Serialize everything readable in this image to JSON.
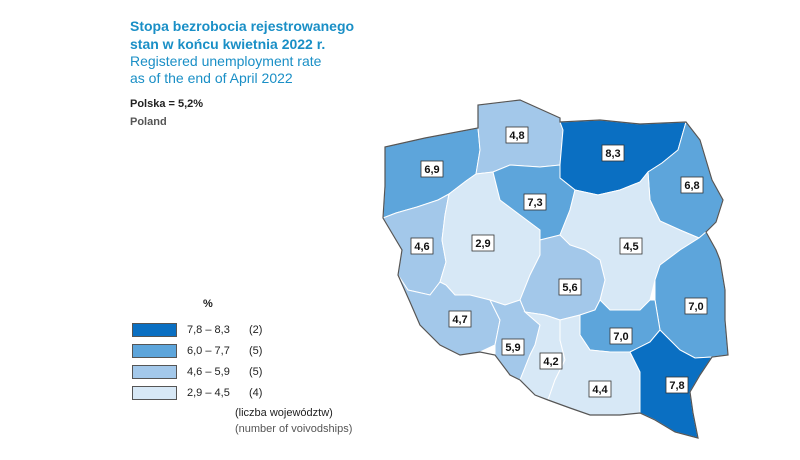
{
  "title": {
    "pl_line1": "Stopa bezrobocia rejestrowanego",
    "pl_line2": "stan w końcu kwietnia 2022 r.",
    "en_line1": "Registered unemployment rate",
    "en_line2": "as of the end of April 2022"
  },
  "national": {
    "pl": "Polska = 5,2%",
    "en": "Poland"
  },
  "legend": {
    "unit": "%",
    "classes": [
      {
        "range": "7,8 – 8,3",
        "count": "(2)",
        "color": "#0a6fc2"
      },
      {
        "range": "6,0 – 7,7",
        "count": "(5)",
        "color": "#5da5db"
      },
      {
        "range": "4,6 – 5,9",
        "count": "(5)",
        "color": "#a3c8ea"
      },
      {
        "range": "2,9 – 4,5",
        "count": "(4)",
        "color": "#d7e8f6"
      }
    ],
    "note_pl": "(liczba województw)",
    "note_en": "(number of voivodships)"
  },
  "regions": [
    {
      "name": "zachodniopomorskie",
      "label": "6,9",
      "value": 6.9
    },
    {
      "name": "pomorskie",
      "label": "4,8",
      "value": 4.8
    },
    {
      "name": "warminsko-mazurskie",
      "label": "8,3",
      "value": 8.3
    },
    {
      "name": "podlaskie",
      "label": "6,8",
      "value": 6.8
    },
    {
      "name": "lubuskie",
      "label": "4,6",
      "value": 4.6
    },
    {
      "name": "wielkopolskie",
      "label": "2,9",
      "value": 2.9
    },
    {
      "name": "kujawsko-pomorskie",
      "label": "7,3",
      "value": 7.3
    },
    {
      "name": "mazowieckie",
      "label": "4,5",
      "value": 4.5
    },
    {
      "name": "lodzkie",
      "label": "5,6",
      "value": 5.6
    },
    {
      "name": "lubelskie",
      "label": "7,0",
      "value": 7.0
    },
    {
      "name": "dolnoslaskie",
      "label": "4,7",
      "value": 4.7
    },
    {
      "name": "opolskie",
      "label": "5,9",
      "value": 5.9
    },
    {
      "name": "slaskie",
      "label": "4,2",
      "value": 4.2
    },
    {
      "name": "swietokrzyskie",
      "label": "7,0",
      "value": 7.0
    },
    {
      "name": "malopolskie",
      "label": "4,4",
      "value": 4.4
    },
    {
      "name": "podkarpackie",
      "label": "7,8",
      "value": 7.8
    }
  ]
}
